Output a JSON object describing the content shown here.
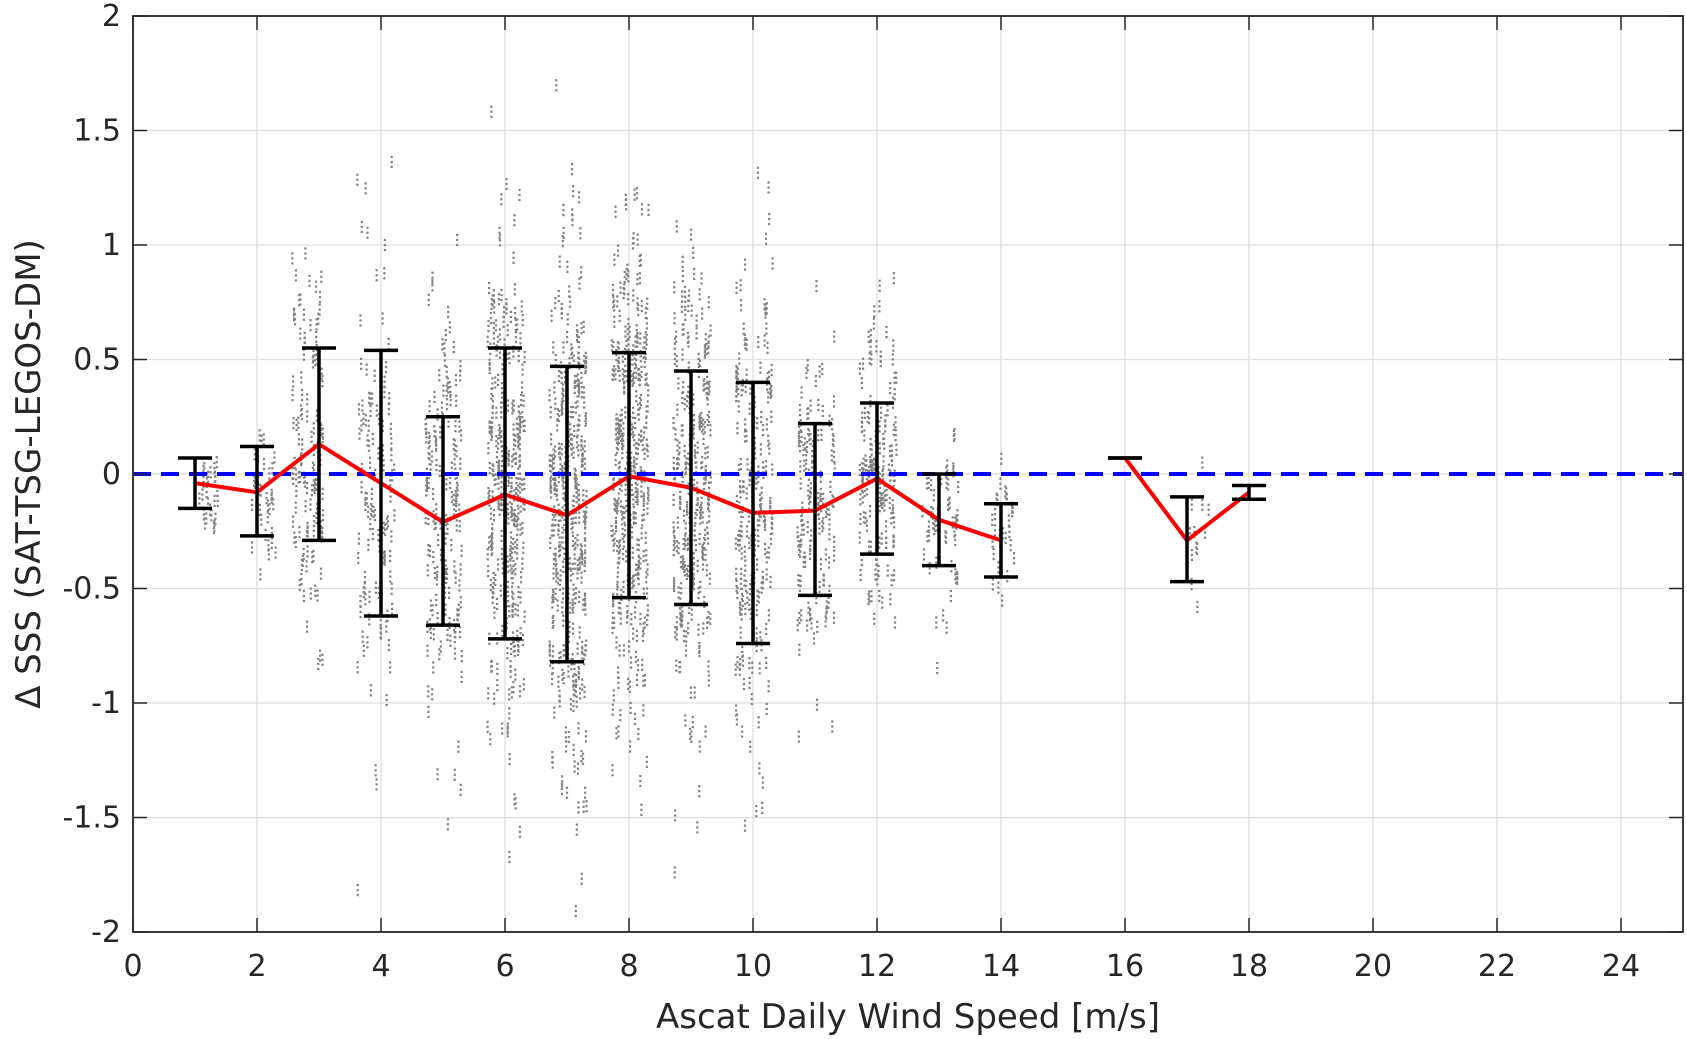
{
  "chart_data": {
    "type": "scatter",
    "title": "",
    "xlabel": "Ascat Daily Wind Speed [m/s]",
    "ylabel": "Δ SSS (SAT-TSG-LEGOS-DM)",
    "xlim": [
      0,
      25
    ],
    "ylim": [
      -2,
      2
    ],
    "xticks": [
      0,
      2,
      4,
      6,
      8,
      10,
      12,
      14,
      16,
      18,
      20,
      22,
      24
    ],
    "yticks": [
      -2,
      -1.5,
      -1,
      -0.5,
      0,
      0.5,
      1,
      1.5,
      2
    ],
    "xtick_labels": [
      "0",
      "2",
      "4",
      "6",
      "8",
      "10",
      "12",
      "14",
      "16",
      "18",
      "20",
      "22",
      "24"
    ],
    "ytick_labels": [
      "-2",
      "-1.5",
      "-1",
      "-0.5",
      "0",
      "0.5",
      "1",
      "1.5",
      "2"
    ],
    "grid": true,
    "reference_line": {
      "y": 0,
      "style": "dashed",
      "color": "#0000ff"
    },
    "series": [
      {
        "kind": "mean_line",
        "color": "#ff0000",
        "segments": [
          [
            [
              1,
              -0.04
            ],
            [
              2,
              -0.08
            ],
            [
              3,
              0.13
            ],
            [
              4,
              -0.04
            ],
            [
              5,
              -0.21
            ],
            [
              6,
              -0.09
            ],
            [
              7,
              -0.18
            ],
            [
              8,
              -0.01
            ],
            [
              9,
              -0.06
            ],
            [
              10,
              -0.17
            ],
            [
              11,
              -0.16
            ],
            [
              12,
              -0.02
            ],
            [
              13,
              -0.2
            ],
            [
              14,
              -0.29
            ]
          ],
          [
            [
              16,
              0.07
            ],
            [
              17,
              -0.29
            ],
            [
              18,
              -0.08
            ]
          ]
        ]
      },
      {
        "kind": "error_bars",
        "color": "#000000",
        "bars": [
          {
            "x": 1,
            "low": -0.15,
            "high": 0.07
          },
          {
            "x": 2,
            "low": -0.27,
            "high": 0.12
          },
          {
            "x": 3,
            "low": -0.29,
            "high": 0.55
          },
          {
            "x": 4,
            "low": -0.62,
            "high": 0.54
          },
          {
            "x": 5,
            "low": -0.66,
            "high": 0.25
          },
          {
            "x": 6,
            "low": -0.72,
            "high": 0.55
          },
          {
            "x": 7,
            "low": -0.82,
            "high": 0.47
          },
          {
            "x": 8,
            "low": -0.54,
            "high": 0.53
          },
          {
            "x": 9,
            "low": -0.57,
            "high": 0.45
          },
          {
            "x": 10,
            "low": -0.74,
            "high": 0.4
          },
          {
            "x": 11,
            "low": -0.53,
            "high": 0.22
          },
          {
            "x": 12,
            "low": -0.35,
            "high": 0.31
          },
          {
            "x": 13,
            "low": -0.4,
            "high": 0.0
          },
          {
            "x": 14,
            "low": -0.45,
            "high": -0.13
          },
          {
            "x": 16,
            "low": 0.07,
            "high": 0.07
          },
          {
            "x": 17,
            "low": -0.47,
            "high": -0.1
          },
          {
            "x": 18,
            "low": -0.11,
            "high": -0.05
          }
        ]
      },
      {
        "kind": "scatter_cloud",
        "color": "#808080",
        "bins": [
          {
            "x": 1.2,
            "spread": 0.3,
            "center": -0.05,
            "sd": 0.1,
            "n": 25
          },
          {
            "x": 2.1,
            "spread": 0.4,
            "center": -0.05,
            "sd": 0.15,
            "n": 35
          },
          {
            "x": 2.8,
            "spread": 0.5,
            "center": 0.12,
            "sd": 0.4,
            "n": 110
          },
          {
            "x": 3.9,
            "spread": 0.6,
            "center": -0.05,
            "sd": 0.5,
            "n": 110
          },
          {
            "x": 5.0,
            "spread": 0.6,
            "center": -0.2,
            "sd": 0.45,
            "n": 150
          },
          {
            "x": 6.0,
            "spread": 0.6,
            "center": -0.08,
            "sd": 0.55,
            "n": 280
          },
          {
            "x": 7.0,
            "spread": 0.6,
            "center": -0.17,
            "sd": 0.6,
            "n": 320
          },
          {
            "x": 8.0,
            "spread": 0.6,
            "center": 0.0,
            "sd": 0.55,
            "n": 300
          },
          {
            "x": 9.0,
            "spread": 0.6,
            "center": -0.05,
            "sd": 0.5,
            "n": 230
          },
          {
            "x": 10.0,
            "spread": 0.6,
            "center": -0.15,
            "sd": 0.55,
            "n": 190
          },
          {
            "x": 11.0,
            "spread": 0.6,
            "center": -0.15,
            "sd": 0.4,
            "n": 120
          },
          {
            "x": 12.0,
            "spread": 0.6,
            "center": 0.0,
            "sd": 0.35,
            "n": 140
          },
          {
            "x": 13.0,
            "spread": 0.6,
            "center": -0.22,
            "sd": 0.2,
            "n": 50
          },
          {
            "x": 14.0,
            "spread": 0.4,
            "center": -0.3,
            "sd": 0.15,
            "n": 30
          },
          {
            "x": 17.2,
            "spread": 0.4,
            "center": -0.3,
            "sd": 0.12,
            "n": 12
          }
        ]
      }
    ]
  }
}
